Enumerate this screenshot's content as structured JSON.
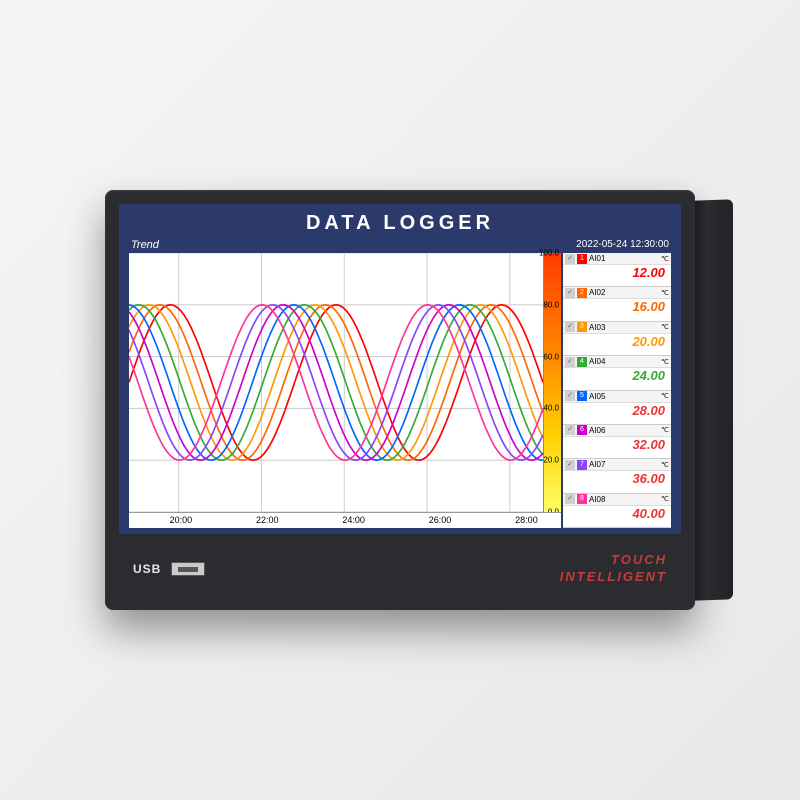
{
  "device": {
    "title": "DATA LOGGER",
    "usb_label": "USB",
    "brand_line1": "TOUCH",
    "brand_line2": "INTELLIGENT",
    "bezel_color": "#2a2c30",
    "screen_bg": "#2b3a6b"
  },
  "header": {
    "section_label": "Trend",
    "timestamp": "2022-05-24 12:30:00"
  },
  "chart": {
    "type": "line",
    "background_color": "#ffffff",
    "grid_color": "#cfcfcf",
    "x_ticks": [
      "20:00",
      "22:00",
      "24:00",
      "26:00",
      "28:00"
    ],
    "x_tick_positions_pct": [
      12,
      32,
      52,
      72,
      92
    ],
    "ylim": [
      0,
      100
    ],
    "y_ticks": [
      0,
      20,
      40,
      60,
      80,
      100
    ],
    "series": [
      {
        "name": "AI01",
        "color": "#ff0000",
        "phase": 0,
        "amp": 30,
        "offset": 50
      },
      {
        "name": "AI02",
        "color": "#ff6600",
        "phase": 0.4,
        "amp": 30,
        "offset": 50
      },
      {
        "name": "AI03",
        "color": "#ff9900",
        "phase": 0.8,
        "amp": 30,
        "offset": 50
      },
      {
        "name": "AI04",
        "color": "#33aa33",
        "phase": 1.2,
        "amp": 30,
        "offset": 50
      },
      {
        "name": "AI05",
        "color": "#0066ff",
        "phase": 1.6,
        "amp": 30,
        "offset": 50
      },
      {
        "name": "AI06",
        "color": "#cc00cc",
        "phase": 2.0,
        "amp": 30,
        "offset": 50
      },
      {
        "name": "AI07",
        "color": "#8844ff",
        "phase": 2.4,
        "amp": 30,
        "offset": 50
      },
      {
        "name": "AI08",
        "color": "#ff3399",
        "phase": 2.8,
        "amp": 30,
        "offset": 50
      }
    ],
    "scale_gradient": [
      "#ff3b00",
      "#ff8a00",
      "#ffd000",
      "#ffff66"
    ]
  },
  "channels": [
    {
      "index": "1",
      "name": "AI01",
      "unit": "℃",
      "value": "12.00",
      "color": "#ff0000",
      "box_color": "#ff0000"
    },
    {
      "index": "2",
      "name": "AI02",
      "unit": "℃",
      "value": "16.00",
      "color": "#ff6600",
      "box_color": "#ff6600"
    },
    {
      "index": "3",
      "name": "AI03",
      "unit": "℃",
      "value": "20.00",
      "color": "#ff9900",
      "box_color": "#ff9900"
    },
    {
      "index": "4",
      "name": "AI04",
      "unit": "℃",
      "value": "24.00",
      "color": "#33aa33",
      "box_color": "#33aa33"
    },
    {
      "index": "5",
      "name": "AI05",
      "unit": "℃",
      "value": "28.00",
      "color": "#ee3333",
      "box_color": "#0066ff"
    },
    {
      "index": "6",
      "name": "AI06",
      "unit": "℃",
      "value": "32.00",
      "color": "#ee3333",
      "box_color": "#cc00cc"
    },
    {
      "index": "7",
      "name": "AI07",
      "unit": "℃",
      "value": "36.00",
      "color": "#ee3333",
      "box_color": "#8844ff"
    },
    {
      "index": "8",
      "name": "AI08",
      "unit": "℃",
      "value": "40.00",
      "color": "#ee3333",
      "box_color": "#ff3399"
    }
  ]
}
